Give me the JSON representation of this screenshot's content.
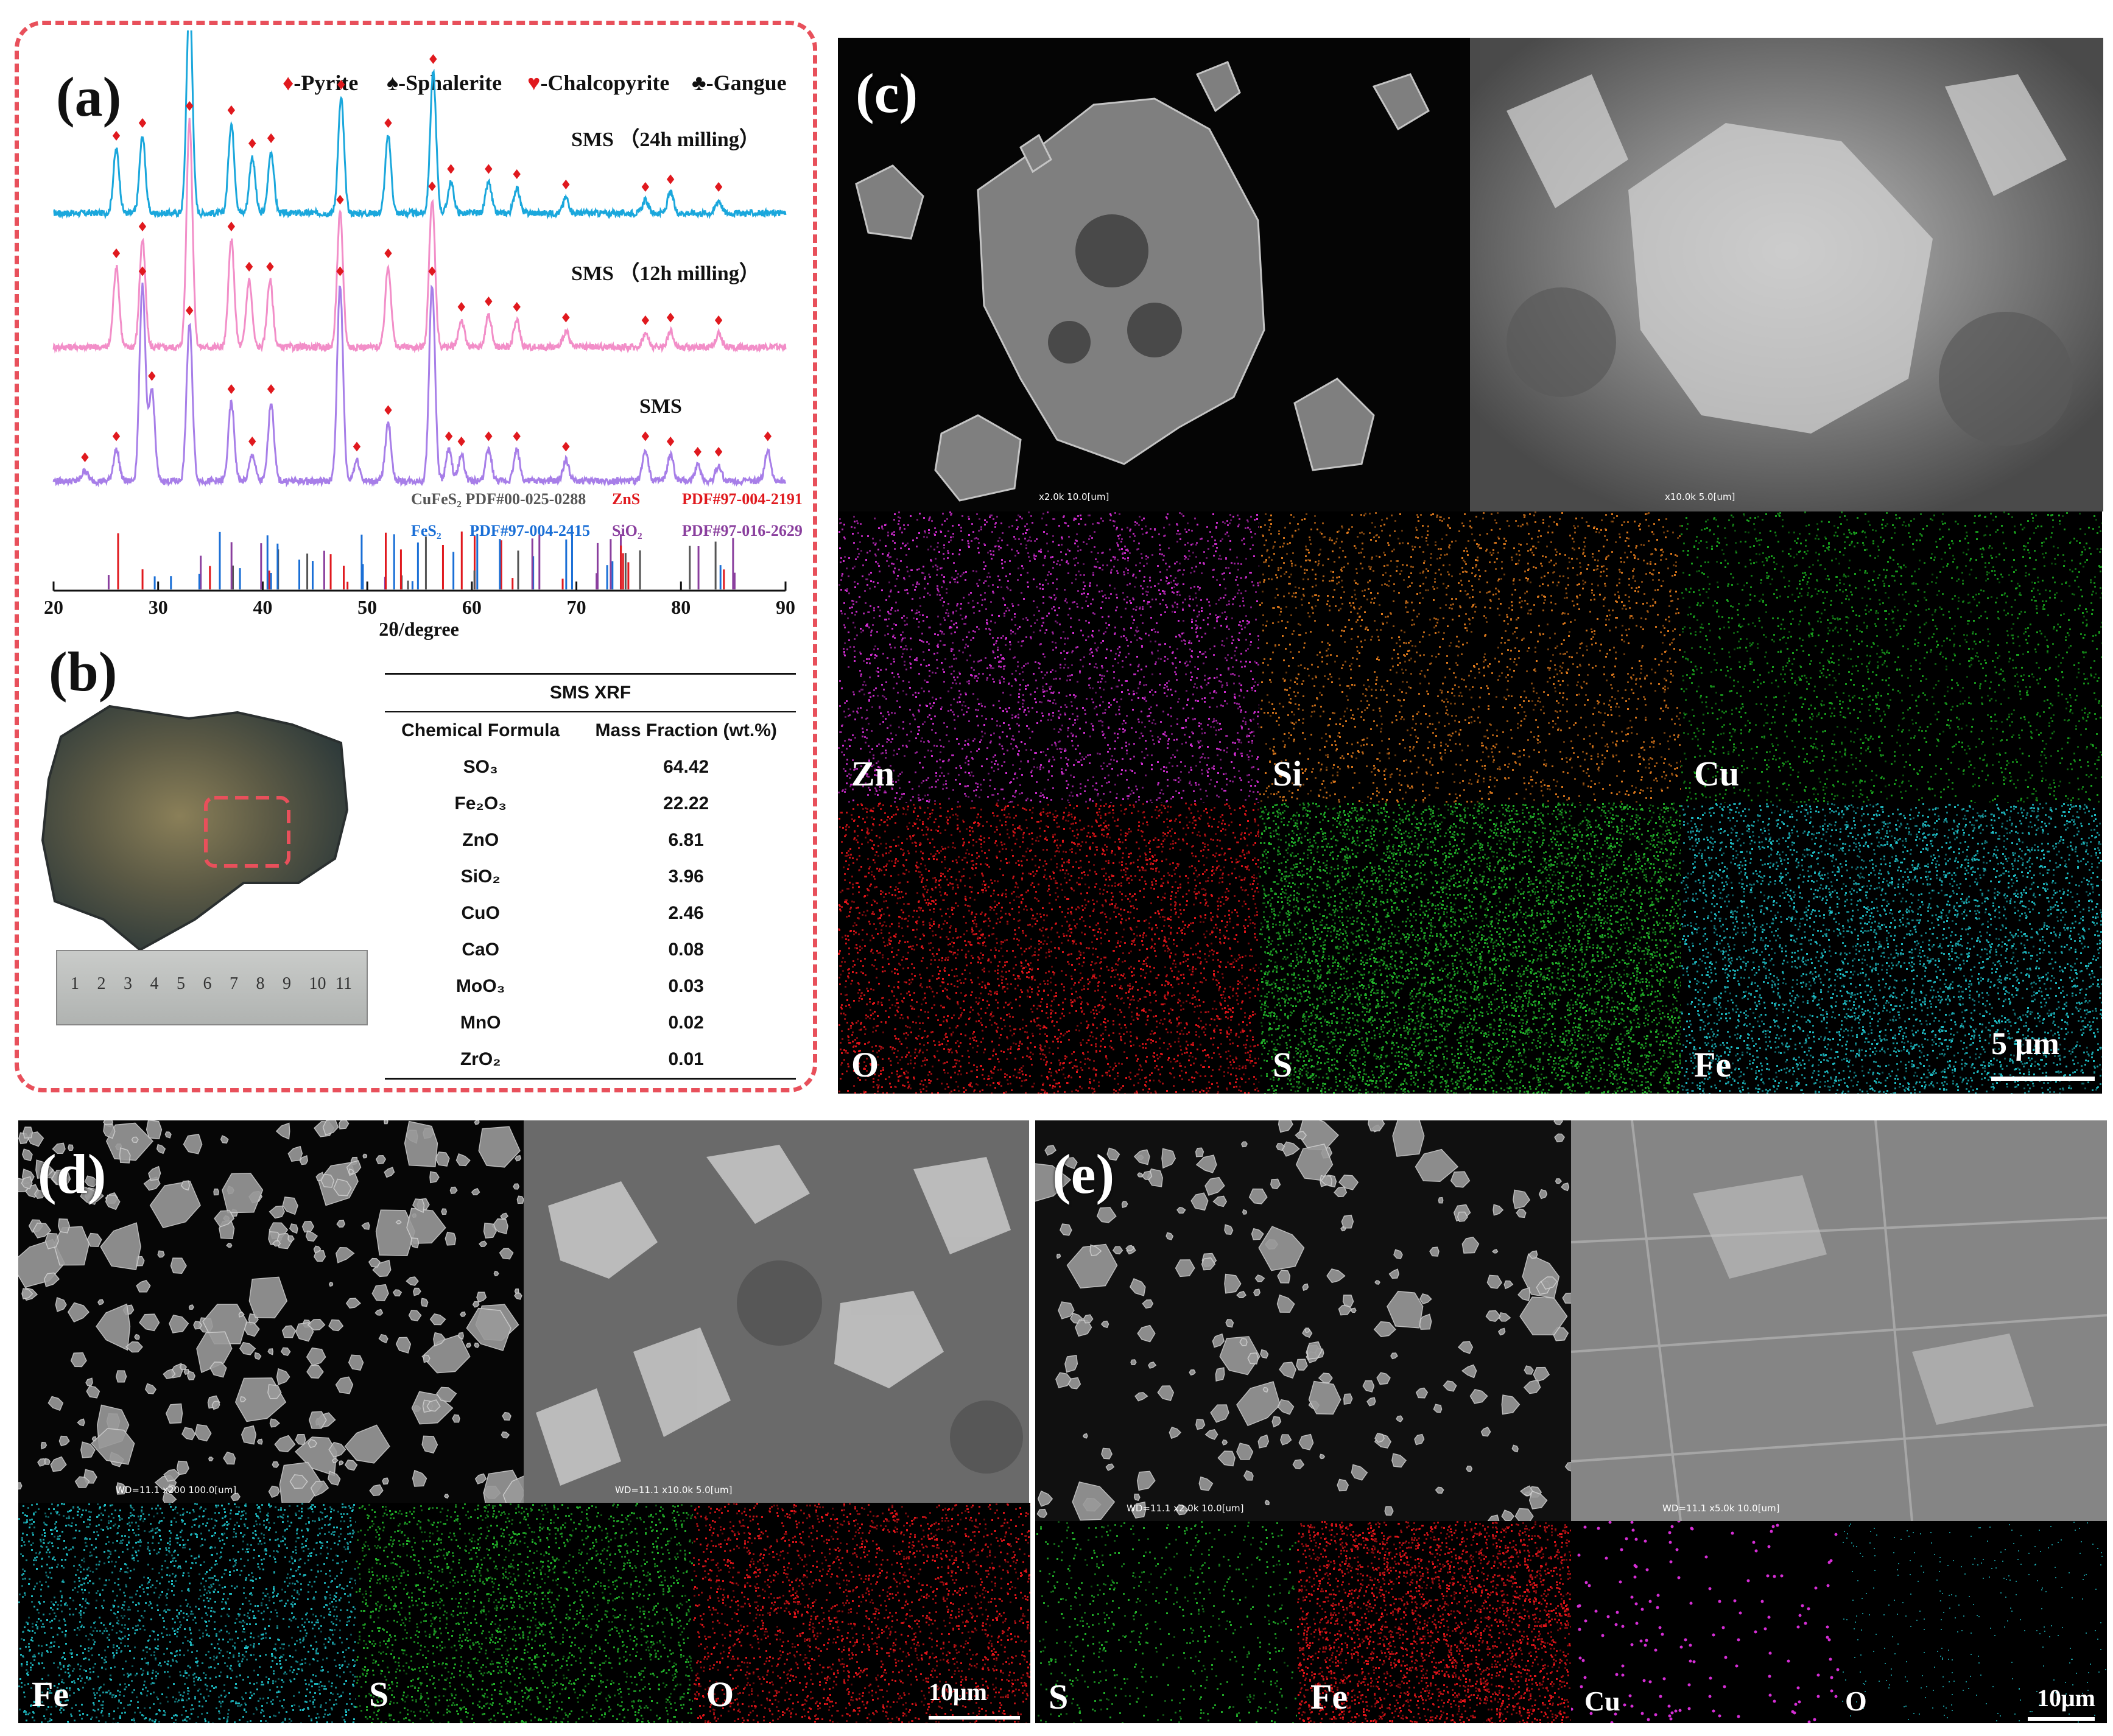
{
  "panels": {
    "a": {
      "letter": "(a)",
      "legend": [
        "♦-Pyrite",
        "♠-Sphalerite",
        "♥-Chalcopyrite",
        "♣-Gangue"
      ],
      "samples": [
        "SMS （24h milling）",
        "SMS （12h milling）",
        "SMS"
      ],
      "xlabel": "2θ/degree",
      "xticks": [
        "20",
        "30",
        "40",
        "50",
        "60",
        "70",
        "80",
        "90"
      ],
      "references": [
        {
          "phase": "CuFeS₂",
          "pdf": "PDF#00-025-0288"
        },
        {
          "phase": "ZnS",
          "pdf": "PDF#97-004-2191"
        },
        {
          "phase": "FeS₂",
          "pdf": "PDF#97-004-2415"
        },
        {
          "phase": "SiO₂",
          "pdf": "PDF#97-016-2629"
        }
      ]
    },
    "b": {
      "letter": "(b)",
      "ruler_numbers": [
        "1",
        "2",
        "3",
        "4",
        "5",
        "6",
        "7",
        "8",
        "9",
        "10",
        "11"
      ],
      "table": {
        "title": "SMS XRF",
        "headers": [
          "Chemical Formula",
          "Mass Fraction (wt.%)"
        ],
        "rows": [
          [
            "SO₃",
            "64.42"
          ],
          [
            "Fe₂O₃",
            "22.22"
          ],
          [
            "ZnO",
            "6.81"
          ],
          [
            "SiO₂",
            "3.96"
          ],
          [
            "CuO",
            "2.46"
          ],
          [
            "CaO",
            "0.08"
          ],
          [
            "MoO₃",
            "0.03"
          ],
          [
            "MnO",
            "0.02"
          ],
          [
            "ZrO₂",
            "0.01"
          ]
        ]
      }
    },
    "c": {
      "letter": "(c)",
      "sem_captions": [
        "x2.0k   10.0[um]",
        "x10.0k   5.0[um]"
      ],
      "maps": [
        "Zn",
        "Si",
        "Cu",
        "O",
        "S",
        "Fe"
      ],
      "scale_bar": "5 μm"
    },
    "d": {
      "letter": "(d)",
      "sem_captions": [
        "WD=11.1   x200   100.0[um]",
        "WD=11.1   x10.0k   5.0[um]"
      ],
      "maps": [
        "Fe",
        "S",
        "O"
      ],
      "scale_bar": "10μm"
    },
    "e": {
      "letter": "(e)",
      "sem_captions": [
        "WD=11.1   x2.0k   10.0[um]",
        "WD=11.1   x5.0k   10.0[um]"
      ],
      "maps": [
        "S",
        "Fe",
        "Cu",
        "O"
      ],
      "scale_bar": "10μm"
    }
  },
  "colors": {
    "frame": "#e8505b",
    "trace_24h": "#1aa7dc",
    "trace_12h": "#f28ec8",
    "trace_sms": "#a77ee8",
    "pyrite": "#e0191e",
    "map_zn": "#d62ed6",
    "map_si": "#e07a1c",
    "map_cu": "#19a51e",
    "map_o": "#e8151a",
    "map_s": "#22b52a",
    "map_fe": "#1fc0c8"
  },
  "chart_data": {
    "type": "line",
    "x_range": [
      20,
      90
    ],
    "series": [
      {
        "name": "SMS （24h milling）",
        "peaks": [
          [
            26,
            0.25
          ],
          [
            28.5,
            0.3
          ],
          [
            33,
            0.85
          ],
          [
            37,
            0.35
          ],
          [
            39,
            0.22
          ],
          [
            40.8,
            0.24
          ],
          [
            47.5,
            0.45
          ],
          [
            52,
            0.3
          ],
          [
            56.3,
            0.55
          ],
          [
            58,
            0.12
          ],
          [
            61.6,
            0.12
          ],
          [
            64.3,
            0.1
          ],
          [
            69,
            0.06
          ],
          [
            76.6,
            0.05
          ],
          [
            79,
            0.08
          ],
          [
            83.6,
            0.05
          ]
        ]
      },
      {
        "name": "SMS （12h milling）",
        "peaks": [
          [
            26,
            0.3
          ],
          [
            28.5,
            0.4
          ],
          [
            33,
            0.85
          ],
          [
            37,
            0.4
          ],
          [
            38.7,
            0.25
          ],
          [
            40.7,
            0.25
          ],
          [
            47.4,
            0.5
          ],
          [
            52,
            0.3
          ],
          [
            56.2,
            0.55
          ],
          [
            59,
            0.1
          ],
          [
            61.6,
            0.12
          ],
          [
            64.3,
            0.1
          ],
          [
            69,
            0.06
          ],
          [
            76.6,
            0.05
          ],
          [
            79,
            0.06
          ],
          [
            83.6,
            0.05
          ]
        ]
      },
      {
        "name": "SMS",
        "peaks": [
          [
            23,
            0.04
          ],
          [
            26,
            0.12
          ],
          [
            28.5,
            0.75
          ],
          [
            29.4,
            0.35
          ],
          [
            33,
            0.6
          ],
          [
            37,
            0.3
          ],
          [
            39,
            0.1
          ],
          [
            40.8,
            0.3
          ],
          [
            47.4,
            0.75
          ],
          [
            49,
            0.08
          ],
          [
            52,
            0.22
          ],
          [
            56.2,
            0.75
          ],
          [
            57.8,
            0.12
          ],
          [
            59,
            0.1
          ],
          [
            61.6,
            0.12
          ],
          [
            64.3,
            0.12
          ],
          [
            69,
            0.08
          ],
          [
            76.6,
            0.12
          ],
          [
            79,
            0.1
          ],
          [
            81.6,
            0.06
          ],
          [
            83.6,
            0.06
          ],
          [
            88.3,
            0.12
          ]
        ]
      }
    ]
  }
}
